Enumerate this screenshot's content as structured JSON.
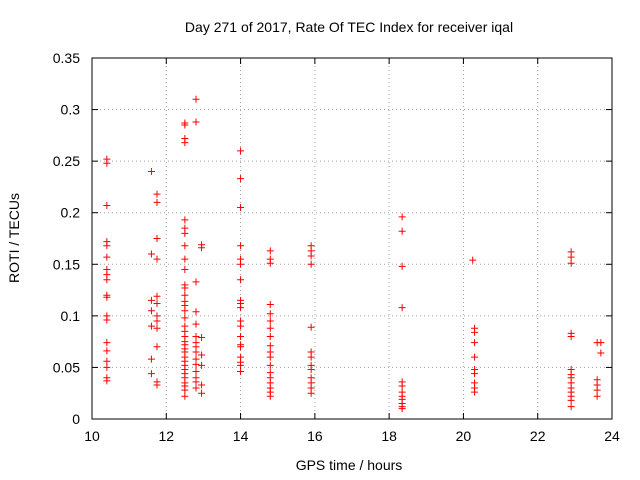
{
  "chart_data": {
    "type": "scatter",
    "title": "Day 271 of 2017, Rate Of TEC Index for receiver iqal",
    "xlabel": "GPS time / hours",
    "ylabel": "ROTI / TECUs",
    "xlim": [
      10,
      24
    ],
    "ylim": [
      0,
      0.35
    ],
    "grid": true,
    "marker": "+",
    "color": "#ff0000",
    "x_ticks": [
      "10",
      "12",
      "14",
      "16",
      "18",
      "20",
      "22",
      "24"
    ],
    "y_ticks": [
      "0",
      "0.05",
      "0.1",
      "0.15",
      "0.2",
      "0.25",
      "0.3",
      "0.35"
    ],
    "series": [
      {
        "name": "ROTI",
        "points": [
          [
            10.4,
            0.252
          ],
          [
            10.4,
            0.248
          ],
          [
            10.4,
            0.207
          ],
          [
            10.4,
            0.172
          ],
          [
            10.4,
            0.168
          ],
          [
            10.4,
            0.157
          ],
          [
            10.4,
            0.145
          ],
          [
            10.4,
            0.14
          ],
          [
            10.4,
            0.135
          ],
          [
            10.4,
            0.12
          ],
          [
            10.4,
            0.118
          ],
          [
            10.4,
            0.1
          ],
          [
            10.4,
            0.096
          ],
          [
            10.4,
            0.074
          ],
          [
            10.4,
            0.066
          ],
          [
            10.4,
            0.056
          ],
          [
            10.4,
            0.05
          ],
          [
            10.4,
            0.04
          ],
          [
            10.4,
            0.037
          ],
          [
            11.6,
            0.24
          ],
          [
            11.6,
            0.16
          ],
          [
            11.6,
            0.115
          ],
          [
            11.6,
            0.105
          ],
          [
            11.6,
            0.09
          ],
          [
            11.6,
            0.058
          ],
          [
            11.6,
            0.044
          ],
          [
            11.75,
            0.218
          ],
          [
            11.75,
            0.21
          ],
          [
            11.75,
            0.175
          ],
          [
            11.75,
            0.155
          ],
          [
            11.75,
            0.119
          ],
          [
            11.75,
            0.112
          ],
          [
            11.75,
            0.1
          ],
          [
            11.75,
            0.095
          ],
          [
            11.75,
            0.088
          ],
          [
            11.75,
            0.07
          ],
          [
            11.75,
            0.036
          ],
          [
            11.75,
            0.033
          ],
          [
            12.5,
            0.287
          ],
          [
            12.5,
            0.285
          ],
          [
            12.5,
            0.272
          ],
          [
            12.5,
            0.268
          ],
          [
            12.5,
            0.193
          ],
          [
            12.5,
            0.185
          ],
          [
            12.5,
            0.18
          ],
          [
            12.5,
            0.168
          ],
          [
            12.5,
            0.155
          ],
          [
            12.5,
            0.145
          ],
          [
            12.5,
            0.13
          ],
          [
            12.5,
            0.127
          ],
          [
            12.5,
            0.12
          ],
          [
            12.5,
            0.114
          ],
          [
            12.5,
            0.11
          ],
          [
            12.5,
            0.105
          ],
          [
            12.5,
            0.098
          ],
          [
            12.5,
            0.09
          ],
          [
            12.5,
            0.085
          ],
          [
            12.5,
            0.08
          ],
          [
            12.5,
            0.075
          ],
          [
            12.5,
            0.072
          ],
          [
            12.5,
            0.068
          ],
          [
            12.5,
            0.065
          ],
          [
            12.5,
            0.06
          ],
          [
            12.5,
            0.056
          ],
          [
            12.5,
            0.052
          ],
          [
            12.5,
            0.048
          ],
          [
            12.5,
            0.044
          ],
          [
            12.5,
            0.04
          ],
          [
            12.5,
            0.035
          ],
          [
            12.5,
            0.032
          ],
          [
            12.5,
            0.028
          ],
          [
            12.5,
            0.022
          ],
          [
            12.8,
            0.31
          ],
          [
            12.8,
            0.288
          ],
          [
            12.8,
            0.133
          ],
          [
            12.8,
            0.104
          ],
          [
            12.8,
            0.092
          ],
          [
            12.8,
            0.08
          ],
          [
            12.8,
            0.074
          ],
          [
            12.8,
            0.07
          ],
          [
            12.8,
            0.065
          ],
          [
            12.8,
            0.058
          ],
          [
            12.8,
            0.053
          ],
          [
            12.8,
            0.046
          ],
          [
            12.8,
            0.04
          ],
          [
            12.8,
            0.036
          ],
          [
            12.8,
            0.03
          ],
          [
            12.95,
            0.169
          ],
          [
            12.95,
            0.166
          ],
          [
            12.95,
            0.079
          ],
          [
            12.95,
            0.062
          ],
          [
            12.95,
            0.052
          ],
          [
            12.95,
            0.033
          ],
          [
            12.95,
            0.025
          ],
          [
            14.0,
            0.26
          ],
          [
            14.0,
            0.233
          ],
          [
            14.0,
            0.205
          ],
          [
            14.0,
            0.168
          ],
          [
            14.0,
            0.155
          ],
          [
            14.0,
            0.15
          ],
          [
            14.0,
            0.135
          ],
          [
            14.0,
            0.115
          ],
          [
            14.0,
            0.112
          ],
          [
            14.0,
            0.108
          ],
          [
            14.0,
            0.095
          ],
          [
            14.0,
            0.09
          ],
          [
            14.0,
            0.08
          ],
          [
            14.0,
            0.072
          ],
          [
            14.0,
            0.07
          ],
          [
            14.0,
            0.06
          ],
          [
            14.0,
            0.055
          ],
          [
            14.0,
            0.052
          ],
          [
            14.0,
            0.046
          ],
          [
            14.8,
            0.163
          ],
          [
            14.8,
            0.155
          ],
          [
            14.8,
            0.151
          ],
          [
            14.8,
            0.111
          ],
          [
            14.8,
            0.102
          ],
          [
            14.8,
            0.095
          ],
          [
            14.8,
            0.088
          ],
          [
            14.8,
            0.08
          ],
          [
            14.8,
            0.071
          ],
          [
            14.8,
            0.065
          ],
          [
            14.8,
            0.06
          ],
          [
            14.8,
            0.052
          ],
          [
            14.8,
            0.045
          ],
          [
            14.8,
            0.04
          ],
          [
            14.8,
            0.035
          ],
          [
            14.8,
            0.03
          ],
          [
            14.8,
            0.026
          ],
          [
            14.8,
            0.022
          ],
          [
            15.9,
            0.168
          ],
          [
            15.9,
            0.163
          ],
          [
            15.9,
            0.158
          ],
          [
            15.9,
            0.15
          ],
          [
            15.9,
            0.089
          ],
          [
            15.9,
            0.065
          ],
          [
            15.9,
            0.06
          ],
          [
            15.9,
            0.052
          ],
          [
            15.9,
            0.048
          ],
          [
            15.9,
            0.04
          ],
          [
            15.9,
            0.035
          ],
          [
            15.9,
            0.03
          ],
          [
            15.9,
            0.025
          ],
          [
            18.35,
            0.196
          ],
          [
            18.35,
            0.182
          ],
          [
            18.35,
            0.148
          ],
          [
            18.35,
            0.108
          ],
          [
            18.35,
            0.036
          ],
          [
            18.35,
            0.032
          ],
          [
            18.35,
            0.026
          ],
          [
            18.35,
            0.022
          ],
          [
            18.35,
            0.019
          ],
          [
            18.35,
            0.015
          ],
          [
            18.35,
            0.012
          ],
          [
            18.35,
            0.01
          ],
          [
            20.25,
            0.154
          ],
          [
            20.3,
            0.088
          ],
          [
            20.3,
            0.084
          ],
          [
            20.3,
            0.074
          ],
          [
            20.3,
            0.06
          ],
          [
            20.3,
            0.048
          ],
          [
            20.3,
            0.044
          ],
          [
            20.3,
            0.035
          ],
          [
            20.3,
            0.03
          ],
          [
            20.3,
            0.026
          ],
          [
            22.9,
            0.162
          ],
          [
            22.9,
            0.157
          ],
          [
            22.9,
            0.151
          ],
          [
            22.9,
            0.083
          ],
          [
            22.9,
            0.08
          ],
          [
            22.9,
            0.048
          ],
          [
            22.9,
            0.043
          ],
          [
            22.9,
            0.04
          ],
          [
            22.9,
            0.035
          ],
          [
            22.9,
            0.03
          ],
          [
            22.9,
            0.026
          ],
          [
            22.9,
            0.022
          ],
          [
            22.9,
            0.018
          ],
          [
            22.9,
            0.012
          ],
          [
            23.6,
            0.074
          ],
          [
            23.6,
            0.038
          ],
          [
            23.6,
            0.033
          ],
          [
            23.6,
            0.028
          ],
          [
            23.6,
            0.022
          ],
          [
            23.7,
            0.074
          ],
          [
            23.7,
            0.064
          ]
        ]
      }
    ]
  }
}
